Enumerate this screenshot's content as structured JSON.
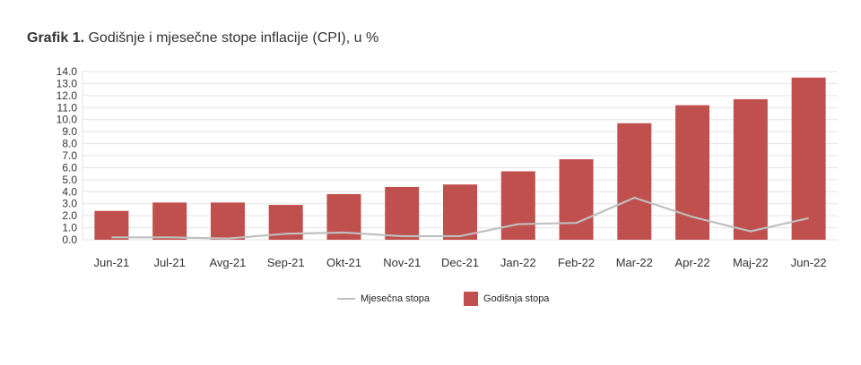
{
  "title": {
    "prefix": "Grafik 1.",
    "text": " Godišnje i mjesečne stope inflacije (CPI), u %"
  },
  "colors": {
    "bar": "#c0504d",
    "line": "#bfbfbf",
    "grid": "#e3e3e3",
    "text": "#333333"
  },
  "legend": {
    "line_label": "Mjesečna stopa",
    "bar_label": "Godišnja stopa",
    "placement": "bottom-center"
  },
  "chart_data": {
    "type": "bar",
    "categories": [
      "Jun-21",
      "Jul-21",
      "Avg-21",
      "Sep-21",
      "Okt-21",
      "Nov-21",
      "Dec-21",
      "Jan-22",
      "Feb-22",
      "Mar-22",
      "Apr-22",
      "Maj-22",
      "Jun-22"
    ],
    "series": [
      {
        "name": "Godišnja stopa",
        "type": "bar",
        "values": [
          2.4,
          3.1,
          3.1,
          2.9,
          3.8,
          4.4,
          4.6,
          5.7,
          6.7,
          9.7,
          11.2,
          11.7,
          13.5
        ]
      },
      {
        "name": "Mjesečna stopa",
        "type": "line",
        "values": [
          0.2,
          0.2,
          0.1,
          0.5,
          0.6,
          0.3,
          0.3,
          1.3,
          1.4,
          3.5,
          1.9,
          0.7,
          1.8
        ]
      }
    ],
    "ylim": [
      0,
      14
    ],
    "yticks": [
      "0.0",
      "1.0",
      "2.0",
      "3.0",
      "4.0",
      "5.0",
      "6.0",
      "7.0",
      "8.0",
      "9.0",
      "10.0",
      "11.0",
      "12.0",
      "13.0",
      "14.0"
    ],
    "grid": true,
    "xlabel": "",
    "ylabel": ""
  }
}
